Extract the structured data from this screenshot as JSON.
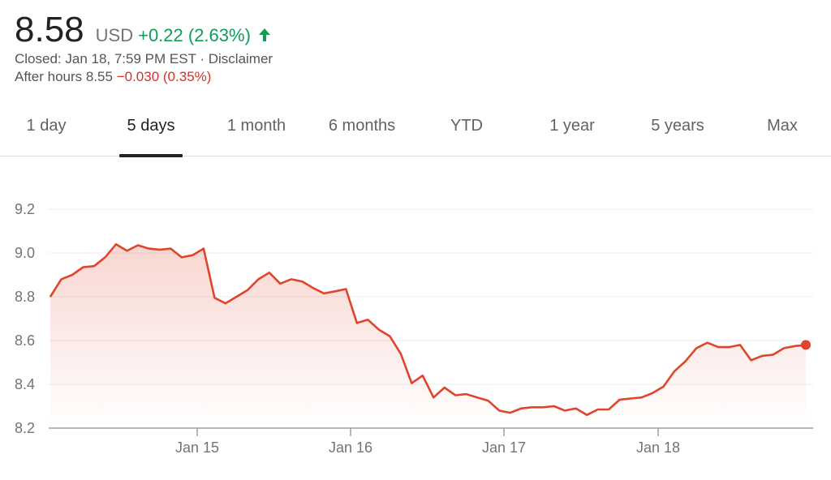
{
  "quote": {
    "price": "8.58",
    "currency": "USD",
    "change": "+0.22 (2.63%)",
    "closed_text": "Closed: Jan 18, 7:59 PM EST",
    "separator": " · ",
    "disclaimer": "Disclaimer",
    "after_hours_label": "After hours 8.55",
    "after_hours_change": "−0.030 (0.35%)"
  },
  "tabs": [
    {
      "label": "1 day",
      "active": false
    },
    {
      "label": "5 days",
      "active": true
    },
    {
      "label": "1 month",
      "active": false
    },
    {
      "label": "6 months",
      "active": false
    },
    {
      "label": "YTD",
      "active": false
    },
    {
      "label": "1 year",
      "active": false
    },
    {
      "label": "5 years",
      "active": false
    },
    {
      "label": "Max",
      "active": false
    }
  ],
  "colors": {
    "line": "#e0452b",
    "up": "#0f9d58",
    "down": "#d93025",
    "grid": "#ececec",
    "axis": "#9aa0a6"
  },
  "icons": {
    "change_arrow": "arrow-up-icon"
  },
  "chart_data": {
    "type": "area",
    "title": "",
    "xlabel": "",
    "ylabel": "",
    "ylim": [
      8.2,
      9.2
    ],
    "y_ticks": [
      "8.2",
      "8.4",
      "8.6",
      "8.8",
      "9.0",
      "9.2"
    ],
    "x_ticks": [
      "Jan 15",
      "Jan 16",
      "Jan 17",
      "Jan 18"
    ],
    "grid": true,
    "series": [
      {
        "values": [
          8.8,
          8.88,
          8.9,
          8.935,
          8.94,
          8.98,
          9.04,
          9.01,
          9.035,
          9.02,
          9.015,
          9.02,
          8.98,
          8.99,
          9.02,
          8.795,
          8.77,
          8.8,
          8.83,
          8.88,
          8.91,
          8.86,
          8.88,
          8.87,
          8.84,
          8.815,
          8.825,
          8.835,
          8.68,
          8.695,
          8.65,
          8.62,
          8.54,
          8.405,
          8.44,
          8.34,
          8.385,
          8.35,
          8.355,
          8.34,
          8.325,
          8.28,
          8.27,
          8.29,
          8.295,
          8.295,
          8.3,
          8.28,
          8.29,
          8.26,
          8.285,
          8.285,
          8.33,
          8.335,
          8.34,
          8.36,
          8.39,
          8.46,
          8.505,
          8.565,
          8.59,
          8.57,
          8.57,
          8.58,
          8.51,
          8.53,
          8.535,
          8.565,
          8.575,
          8.58
        ]
      }
    ]
  }
}
